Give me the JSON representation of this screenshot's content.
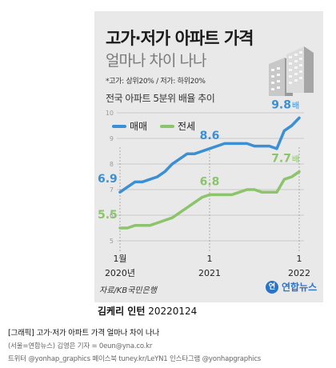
{
  "title": "고가·저가 아파트 가격",
  "subtitle": "얼마나 차이 나나",
  "note": "*고가: 상위20% / 저가: 하위20%",
  "chart_title": "전국 아파트 5분위 배율 추이",
  "source": "자료/KB국민은행",
  "logo": "연합뉴스",
  "credit_name": "김케리 인턴",
  "credit_date": "20220124",
  "caption": "[그래픽] 고가·저가 아파트 가격 얼마나 차이 나나",
  "footer_lines": [
    "(서울=연합뉴스) 김영은 기자 = 0eun@yna.co.kr",
    "트위터 @yonhap_graphics 페이스북 tuney.kr/LeYN1 인스타그램 @yonhapgraphics"
  ],
  "colors": {
    "maemae": "#3b8fd4",
    "jeonse": "#8cc46c",
    "grid": "#c9c9c9",
    "card_bg": "#e9e9e9"
  },
  "chart_data": {
    "type": "line",
    "title": "전국 아파트 5분위 배율 추이",
    "x": [
      "2020-01",
      "2020-02",
      "2020-03",
      "2020-04",
      "2020-05",
      "2020-06",
      "2020-07",
      "2020-08",
      "2020-09",
      "2020-10",
      "2020-11",
      "2020-12",
      "2021-01",
      "2021-02",
      "2021-03",
      "2021-04",
      "2021-05",
      "2021-06",
      "2021-07",
      "2021-08",
      "2021-09",
      "2021-10",
      "2021-11",
      "2021-12",
      "2022-01"
    ],
    "x_tick_labels": [
      {
        "at": "2020-01",
        "month": "1월",
        "year": "2020년"
      },
      {
        "at": "2021-01",
        "month": "1",
        "year": "2021"
      },
      {
        "at": "2022-01",
        "month": "1",
        "year": "2022"
      }
    ],
    "ylim": [
      5,
      10
    ],
    "yticks": [
      5,
      6,
      7,
      8,
      9,
      10
    ],
    "grid": true,
    "legend": "top-left",
    "series": [
      {
        "name": "매매",
        "values": [
          6.9,
          7.1,
          7.3,
          7.3,
          7.4,
          7.5,
          7.7,
          8.0,
          8.2,
          8.4,
          8.4,
          8.5,
          8.6,
          8.7,
          8.8,
          8.8,
          8.8,
          8.8,
          8.7,
          8.7,
          8.7,
          8.6,
          9.3,
          9.5,
          9.8
        ],
        "labels": [
          {
            "at": "2020-01",
            "text": "6.9"
          },
          {
            "at": "2021-01",
            "text": "8.6"
          },
          {
            "at": "2022-01",
            "text": "9.8",
            "unit": "배"
          }
        ]
      },
      {
        "name": "전세",
        "values": [
          5.5,
          5.5,
          5.6,
          5.6,
          5.6,
          5.7,
          5.8,
          5.9,
          6.1,
          6.3,
          6.5,
          6.7,
          6.8,
          6.8,
          6.8,
          6.8,
          6.9,
          7.0,
          7.0,
          6.9,
          6.9,
          6.9,
          7.4,
          7.5,
          7.7
        ],
        "labels": [
          {
            "at": "2020-01",
            "text": "5.5"
          },
          {
            "at": "2021-01",
            "text": "6.8"
          },
          {
            "at": "2022-01",
            "text": "7.7",
            "unit": "배"
          }
        ]
      }
    ]
  }
}
